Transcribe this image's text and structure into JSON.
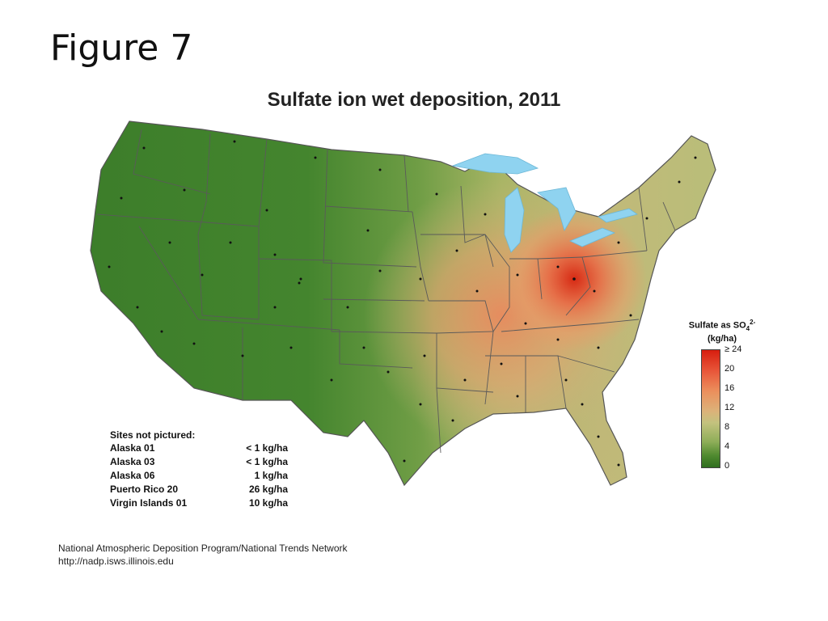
{
  "slide": {
    "title": "Figure 7"
  },
  "map": {
    "title": "Sulfate ion wet deposition, 2011",
    "region": "Contiguous United States",
    "colors": {
      "low": "#2f6e1f",
      "mid": "#c3c27e",
      "high": "#d71e0f",
      "water": "#8fd3f0",
      "borders": "#555555"
    }
  },
  "legend": {
    "title_main": "Sulfate as SO",
    "title_sub": "4",
    "title_sup": "2-",
    "title_units": "(kg/ha)",
    "ticks": [
      "≥ 24",
      "20",
      "16",
      "12",
      "8",
      "4",
      "0"
    ]
  },
  "notes": {
    "title": "Sites not pictured:",
    "rows": [
      {
        "site": "Alaska 01",
        "value": "< 1 kg/ha"
      },
      {
        "site": "Alaska 03",
        "value": "< 1 kg/ha"
      },
      {
        "site": "Alaska 06",
        "value": "1 kg/ha"
      },
      {
        "site": "Puerto Rico 20",
        "value": "26 kg/ha"
      },
      {
        "site": "Virgin Islands 01",
        "value": "10 kg/ha"
      }
    ]
  },
  "source": {
    "line1": "National Atmospheric Deposition Program/National Trends Network",
    "line2": "http://nadp.isws.illinois.edu"
  }
}
